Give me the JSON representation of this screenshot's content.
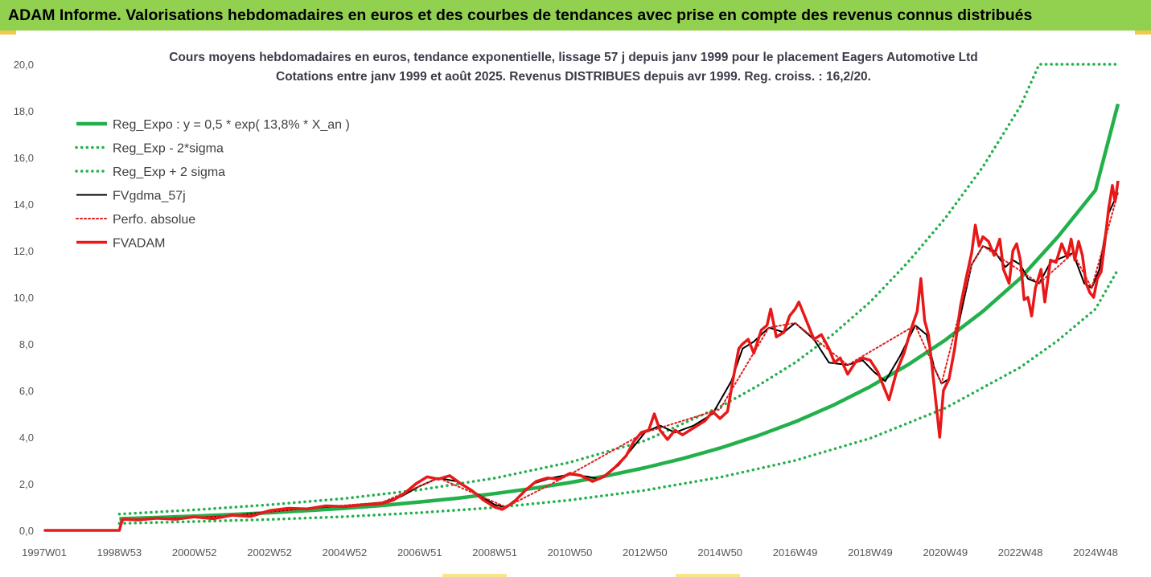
{
  "banner": {
    "title": "ADAM Informe. Valorisations hebdomadaires en euros et des courbes de tendances avec prise en compte des revenus connus distribués"
  },
  "colors": {
    "banner_bg": "#92d050",
    "reg_expo": "#22b04b",
    "sigma": "#22b04b",
    "fvgdma": "#000000",
    "perfo": "#e02020",
    "fvadam": "#e81818"
  },
  "chart_data": {
    "type": "line",
    "title": "Cours moyens hebdomadaires en euros, tendance exponentielle, lissage 57 j depuis janv 1999 pour le placement Eagers Automotive Ltd",
    "subtitle": "Cotations entre janv 1999 et août 2025. Revenus DISTRIBUES depuis avr 1999. Reg. croiss. : 16,2/20.",
    "xlabel": "",
    "ylabel": "",
    "xlim": [
      1997.0,
      2025.6
    ],
    "ylim": [
      0,
      20
    ],
    "y_ticks": [
      "0,0",
      "2,0",
      "4,0",
      "6,0",
      "8,0",
      "10,0",
      "12,0",
      "14,0",
      "16,0",
      "18,0",
      "20,0"
    ],
    "x_ticks": [
      {
        "label": "1997W01",
        "x": 1997.0
      },
      {
        "label": "1998W53",
        "x": 1999.0
      },
      {
        "label": "2000W52",
        "x": 2001.0
      },
      {
        "label": "2002W52",
        "x": 2003.0
      },
      {
        "label": "2004W52",
        "x": 2005.0
      },
      {
        "label": "2006W51",
        "x": 2007.0
      },
      {
        "label": "2008W51",
        "x": 2009.0
      },
      {
        "label": "2010W50",
        "x": 2011.0
      },
      {
        "label": "2012W50",
        "x": 2013.0
      },
      {
        "label": "2014W50",
        "x": 2015.0
      },
      {
        "label": "2016W49",
        "x": 2017.0
      },
      {
        "label": "2018W49",
        "x": 2019.0
      },
      {
        "label": "2020W49",
        "x": 2021.0
      },
      {
        "label": "2022W48",
        "x": 2023.0
      },
      {
        "label": "2024W48",
        "x": 2025.0
      }
    ],
    "grid": false,
    "legend_position": "top-left",
    "series": [
      {
        "name": "Reg_Expo : y = 0,5 * exp( 13,8% *  X_an )",
        "style": "solid-thick",
        "points": [
          [
            1999.0,
            0.5
          ],
          [
            2000.0,
            0.55
          ],
          [
            2001.0,
            0.61
          ],
          [
            2002.0,
            0.68
          ],
          [
            2003.0,
            0.76
          ],
          [
            2004.0,
            0.85
          ],
          [
            2005.0,
            0.95
          ],
          [
            2006.0,
            1.07
          ],
          [
            2007.0,
            1.22
          ],
          [
            2008.0,
            1.38
          ],
          [
            2009.0,
            1.58
          ],
          [
            2010.0,
            1.8
          ],
          [
            2011.0,
            2.05
          ],
          [
            2012.0,
            2.35
          ],
          [
            2013.0,
            2.69
          ],
          [
            2014.0,
            3.08
          ],
          [
            2015.0,
            3.53
          ],
          [
            2016.0,
            4.06
          ],
          [
            2017.0,
            4.66
          ],
          [
            2018.0,
            5.36
          ],
          [
            2019.0,
            6.17
          ],
          [
            2020.0,
            7.1
          ],
          [
            2021.0,
            8.17
          ],
          [
            2022.0,
            9.4
          ],
          [
            2023.0,
            10.82
          ],
          [
            2024.0,
            12.6
          ],
          [
            2025.0,
            14.6
          ],
          [
            2025.6,
            18.3
          ]
        ]
      },
      {
        "name": "Reg_Exp - 2*sigma",
        "style": "dotted",
        "points": [
          [
            1999.0,
            0.3
          ],
          [
            2001.0,
            0.38
          ],
          [
            2003.0,
            0.47
          ],
          [
            2005.0,
            0.59
          ],
          [
            2007.0,
            0.76
          ],
          [
            2009.0,
            0.98
          ],
          [
            2011.0,
            1.3
          ],
          [
            2013.0,
            1.72
          ],
          [
            2015.0,
            2.28
          ],
          [
            2017.0,
            3.0
          ],
          [
            2019.0,
            3.95
          ],
          [
            2021.0,
            5.25
          ],
          [
            2023.0,
            7.0
          ],
          [
            2024.0,
            8.15
          ],
          [
            2025.0,
            9.5
          ],
          [
            2025.6,
            11.2
          ]
        ]
      },
      {
        "name": "Reg_Exp + 2 sigma",
        "style": "dotted",
        "points": [
          [
            1999.0,
            0.7
          ],
          [
            2001.0,
            0.88
          ],
          [
            2003.0,
            1.1
          ],
          [
            2005.0,
            1.37
          ],
          [
            2007.0,
            1.74
          ],
          [
            2009.0,
            2.24
          ],
          [
            2011.0,
            2.92
          ],
          [
            2013.0,
            3.85
          ],
          [
            2015.0,
            5.3
          ],
          [
            2016.0,
            6.2
          ],
          [
            2017.0,
            7.2
          ],
          [
            2018.0,
            8.4
          ],
          [
            2019.0,
            9.8
          ],
          [
            2020.0,
            11.5
          ],
          [
            2021.0,
            13.4
          ],
          [
            2022.0,
            15.6
          ],
          [
            2023.0,
            18.2
          ],
          [
            2023.5,
            20.0
          ],
          [
            2025.6,
            20.0
          ]
        ]
      },
      {
        "name": "FVgdma_57j",
        "style": "solid",
        "points": [
          [
            1997.0,
            0
          ],
          [
            1999.0,
            0
          ],
          [
            1999.05,
            0.45
          ],
          [
            2000.0,
            0.5
          ],
          [
            2001.0,
            0.55
          ],
          [
            2002.0,
            0.62
          ],
          [
            2003.0,
            0.8
          ],
          [
            2004.0,
            0.95
          ],
          [
            2005.0,
            1.05
          ],
          [
            2006.0,
            1.2
          ],
          [
            2006.5,
            1.45
          ],
          [
            2007.0,
            1.9
          ],
          [
            2007.5,
            2.25
          ],
          [
            2008.0,
            2.1
          ],
          [
            2008.5,
            1.6
          ],
          [
            2009.0,
            1.1
          ],
          [
            2009.3,
            1.0
          ],
          [
            2009.7,
            1.5
          ],
          [
            2010.0,
            2.0
          ],
          [
            2010.5,
            2.25
          ],
          [
            2011.0,
            2.4
          ],
          [
            2011.5,
            2.3
          ],
          [
            2011.8,
            2.2
          ],
          [
            2012.3,
            2.8
          ],
          [
            2012.7,
            3.6
          ],
          [
            2013.0,
            4.2
          ],
          [
            2013.4,
            4.5
          ],
          [
            2013.8,
            4.2
          ],
          [
            2014.3,
            4.5
          ],
          [
            2014.8,
            5.0
          ],
          [
            2015.3,
            6.4
          ],
          [
            2015.6,
            7.8
          ],
          [
            2015.9,
            8.1
          ],
          [
            2016.3,
            8.7
          ],
          [
            2016.7,
            8.5
          ],
          [
            2017.0,
            8.9
          ],
          [
            2017.5,
            8.2
          ],
          [
            2017.9,
            7.2
          ],
          [
            2018.4,
            7.1
          ],
          [
            2018.8,
            7.3
          ],
          [
            2019.1,
            6.8
          ],
          [
            2019.4,
            6.4
          ],
          [
            2019.8,
            7.5
          ],
          [
            2020.2,
            8.8
          ],
          [
            2020.5,
            8.4
          ],
          [
            2020.7,
            7.0
          ],
          [
            2020.9,
            6.3
          ],
          [
            2021.1,
            6.5
          ],
          [
            2021.4,
            9.2
          ],
          [
            2021.7,
            11.4
          ],
          [
            2022.0,
            12.2
          ],
          [
            2022.3,
            12.0
          ],
          [
            2022.6,
            11.3
          ],
          [
            2022.8,
            11.6
          ],
          [
            2023.0,
            11.4
          ],
          [
            2023.2,
            10.8
          ],
          [
            2023.5,
            10.6
          ],
          [
            2023.8,
            11.5
          ],
          [
            2024.1,
            11.7
          ],
          [
            2024.4,
            11.9
          ],
          [
            2024.7,
            10.6
          ],
          [
            2024.9,
            10.4
          ],
          [
            2025.1,
            11.2
          ],
          [
            2025.35,
            13.6
          ],
          [
            2025.6,
            14.5
          ]
        ]
      },
      {
        "name": "Perfo. absolue",
        "style": "dotted",
        "points": [
          [
            1997.0,
            0
          ],
          [
            1999.0,
            0
          ],
          [
            1999.05,
            0.45
          ],
          [
            2000.0,
            0.5
          ],
          [
            2002.0,
            0.62
          ],
          [
            2004.0,
            0.95
          ],
          [
            2006.0,
            1.2
          ],
          [
            2007.5,
            2.25
          ],
          [
            2009.3,
            1.0
          ],
          [
            2011.0,
            2.4
          ],
          [
            2013.0,
            4.2
          ],
          [
            2015.0,
            5.2
          ],
          [
            2016.3,
            8.7
          ],
          [
            2017.0,
            8.9
          ],
          [
            2018.4,
            7.1
          ],
          [
            2020.2,
            8.8
          ],
          [
            2020.9,
            6.3
          ],
          [
            2021.7,
            11.4
          ],
          [
            2022.0,
            12.2
          ],
          [
            2023.5,
            10.6
          ],
          [
            2024.4,
            11.9
          ],
          [
            2024.9,
            10.4
          ],
          [
            2025.6,
            14.5
          ]
        ]
      },
      {
        "name": "FVADAM",
        "style": "solid-thick",
        "points": [
          [
            1997.0,
            0
          ],
          [
            1999.0,
            0
          ],
          [
            1999.05,
            0.3
          ],
          [
            1999.1,
            0.48
          ],
          [
            1999.5,
            0.45
          ],
          [
            2000.0,
            0.52
          ],
          [
            2000.5,
            0.48
          ],
          [
            2001.0,
            0.58
          ],
          [
            2001.5,
            0.5
          ],
          [
            2002.0,
            0.65
          ],
          [
            2002.5,
            0.6
          ],
          [
            2003.0,
            0.85
          ],
          [
            2003.5,
            0.95
          ],
          [
            2004.0,
            0.92
          ],
          [
            2004.5,
            1.05
          ],
          [
            2005.0,
            1.02
          ],
          [
            2005.5,
            1.1
          ],
          [
            2006.0,
            1.15
          ],
          [
            2006.3,
            1.3
          ],
          [
            2006.6,
            1.6
          ],
          [
            2006.9,
            2.0
          ],
          [
            2007.2,
            2.3
          ],
          [
            2007.5,
            2.2
          ],
          [
            2007.8,
            2.35
          ],
          [
            2008.1,
            2.0
          ],
          [
            2008.4,
            1.7
          ],
          [
            2008.7,
            1.3
          ],
          [
            2009.0,
            1.0
          ],
          [
            2009.2,
            0.9
          ],
          [
            2009.5,
            1.2
          ],
          [
            2009.8,
            1.7
          ],
          [
            2010.1,
            2.1
          ],
          [
            2010.4,
            2.25
          ],
          [
            2010.7,
            2.2
          ],
          [
            2011.0,
            2.45
          ],
          [
            2011.3,
            2.35
          ],
          [
            2011.6,
            2.1
          ],
          [
            2011.9,
            2.3
          ],
          [
            2012.2,
            2.7
          ],
          [
            2012.5,
            3.2
          ],
          [
            2012.7,
            3.8
          ],
          [
            2012.9,
            4.2
          ],
          [
            2013.1,
            4.3
          ],
          [
            2013.25,
            5.0
          ],
          [
            2013.4,
            4.3
          ],
          [
            2013.6,
            3.9
          ],
          [
            2013.8,
            4.3
          ],
          [
            2014.0,
            4.1
          ],
          [
            2014.3,
            4.4
          ],
          [
            2014.6,
            4.7
          ],
          [
            2014.8,
            5.1
          ],
          [
            2015.0,
            4.8
          ],
          [
            2015.2,
            5.1
          ],
          [
            2015.35,
            6.5
          ],
          [
            2015.5,
            7.8
          ],
          [
            2015.6,
            8.0
          ],
          [
            2015.75,
            8.2
          ],
          [
            2015.9,
            7.6
          ],
          [
            2016.1,
            8.6
          ],
          [
            2016.25,
            8.8
          ],
          [
            2016.35,
            9.5
          ],
          [
            2016.5,
            8.3
          ],
          [
            2016.7,
            8.5
          ],
          [
            2016.85,
            9.2
          ],
          [
            2017.0,
            9.5
          ],
          [
            2017.1,
            9.8
          ],
          [
            2017.3,
            9.0
          ],
          [
            2017.5,
            8.2
          ],
          [
            2017.7,
            8.4
          ],
          [
            2017.9,
            7.8
          ],
          [
            2018.05,
            7.2
          ],
          [
            2018.2,
            7.4
          ],
          [
            2018.4,
            6.7
          ],
          [
            2018.6,
            7.2
          ],
          [
            2018.8,
            7.4
          ],
          [
            2019.0,
            7.3
          ],
          [
            2019.2,
            6.8
          ],
          [
            2019.35,
            6.2
          ],
          [
            2019.5,
            5.6
          ],
          [
            2019.7,
            6.8
          ],
          [
            2019.9,
            7.6
          ],
          [
            2020.1,
            8.7
          ],
          [
            2020.25,
            9.4
          ],
          [
            2020.35,
            10.8
          ],
          [
            2020.45,
            9.0
          ],
          [
            2020.55,
            8.4
          ],
          [
            2020.65,
            7.0
          ],
          [
            2020.75,
            5.5
          ],
          [
            2020.85,
            4.0
          ],
          [
            2020.95,
            6.0
          ],
          [
            2021.1,
            6.5
          ],
          [
            2021.25,
            7.8
          ],
          [
            2021.4,
            9.6
          ],
          [
            2021.55,
            10.8
          ],
          [
            2021.7,
            11.9
          ],
          [
            2021.8,
            13.1
          ],
          [
            2021.9,
            12.2
          ],
          [
            2022.0,
            12.6
          ],
          [
            2022.15,
            12.4
          ],
          [
            2022.3,
            11.8
          ],
          [
            2022.45,
            12.5
          ],
          [
            2022.55,
            11.2
          ],
          [
            2022.7,
            10.6
          ],
          [
            2022.8,
            12.0
          ],
          [
            2022.9,
            12.3
          ],
          [
            2023.0,
            11.6
          ],
          [
            2023.1,
            9.9
          ],
          [
            2023.2,
            10.0
          ],
          [
            2023.3,
            9.2
          ],
          [
            2023.4,
            10.4
          ],
          [
            2023.55,
            11.2
          ],
          [
            2023.65,
            9.8
          ],
          [
            2023.8,
            11.6
          ],
          [
            2023.95,
            11.5
          ],
          [
            2024.1,
            12.3
          ],
          [
            2024.25,
            11.7
          ],
          [
            2024.35,
            12.5
          ],
          [
            2024.45,
            11.6
          ],
          [
            2024.55,
            12.4
          ],
          [
            2024.65,
            11.8
          ],
          [
            2024.75,
            10.6
          ],
          [
            2024.85,
            10.2
          ],
          [
            2024.95,
            10.0
          ],
          [
            2025.05,
            10.8
          ],
          [
            2025.15,
            11.1
          ],
          [
            2025.25,
            12.4
          ],
          [
            2025.35,
            13.8
          ],
          [
            2025.45,
            14.8
          ],
          [
            2025.52,
            14.1
          ],
          [
            2025.6,
            15.0
          ]
        ]
      }
    ]
  }
}
